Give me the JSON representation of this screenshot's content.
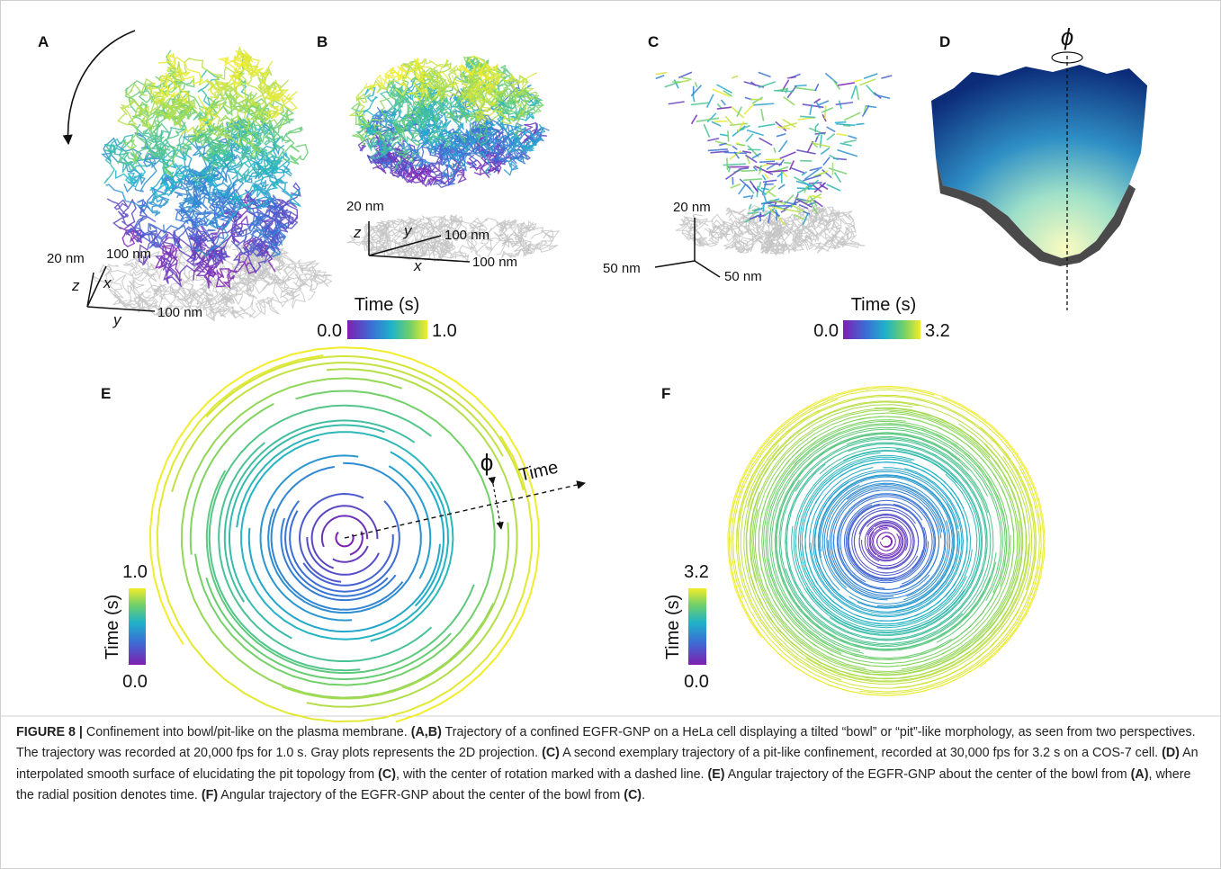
{
  "panels": [
    {
      "label": "A",
      "axis_labels": {
        "z_scale": "20 nm",
        "x_scale": "100 nm",
        "z": "z",
        "x": "x",
        "y": "y",
        "y_scale": "100 nm"
      }
    },
    {
      "label": "B",
      "axis_labels": {
        "z_scale": "20 nm",
        "z": "z",
        "y": "y",
        "y_scale": "100 nm",
        "x": "x",
        "x_scale": "100 nm"
      },
      "colorbar": {
        "title": "Time (s)",
        "min": "0.0",
        "max": "1.0"
      }
    },
    {
      "label": "C",
      "axis_labels": {
        "z_scale": "20 nm",
        "x_scale": "50 nm",
        "y_scale": "50 nm"
      },
      "colorbar": {
        "title": "Time (s)",
        "min": "0.0",
        "max": "3.2"
      }
    },
    {
      "label": "D",
      "symbol": "ϕ"
    },
    {
      "label": "E",
      "symbol": "ϕ",
      "arrow_label": "Time",
      "colorbar": {
        "title": "Time (s)",
        "min": "0.0",
        "max": "1.0"
      }
    },
    {
      "label": "F",
      "colorbar": {
        "title": "Time (s)",
        "min": "0.0",
        "max": "3.2"
      }
    }
  ],
  "caption": [
    {
      "text": "FIGURE 8 |",
      "bold": true
    },
    {
      "text": " Confinement into bowl/pit-like on the plasma membrane. ",
      "bold": false
    },
    {
      "text": "(A,B)",
      "bold": true
    },
    {
      "text": " Trajectory of a confined EGFR-GNP on a HeLa cell displaying a tilted “bowl” or “pit”-like morphology, as seen from two perspectives. The trajectory was recorded at 20,000 fps for 1.0 s. Gray plots represents the 2D projection. ",
      "bold": false
    },
    {
      "text": "(C)",
      "bold": true
    },
    {
      "text": " A second exemplary trajectory of a pit-like confinement, recorded at 30,000 fps for 3.2 s on a COS-7 cell. ",
      "bold": false
    },
    {
      "text": "(D)",
      "bold": true
    },
    {
      "text": " An interpolated smooth surface of elucidating the pit topology from ",
      "bold": false
    },
    {
      "text": "(C)",
      "bold": true
    },
    {
      "text": ", with the center of rotation marked with a dashed line. ",
      "bold": false
    },
    {
      "text": "(E)",
      "bold": true
    },
    {
      "text": " Angular trajectory of the EGFR-GNP about the center of the bowl from ",
      "bold": false
    },
    {
      "text": "(A)",
      "bold": true
    },
    {
      "text": ", where the radial position denotes time. ",
      "bold": false
    },
    {
      "text": "(F)",
      "bold": true
    },
    {
      "text": " Angular trajectory of the EGFR-GNP about the center of the bowl from ",
      "bold": false
    },
    {
      "text": "(C)",
      "bold": true
    },
    {
      "text": ".",
      "bold": false
    }
  ]
}
